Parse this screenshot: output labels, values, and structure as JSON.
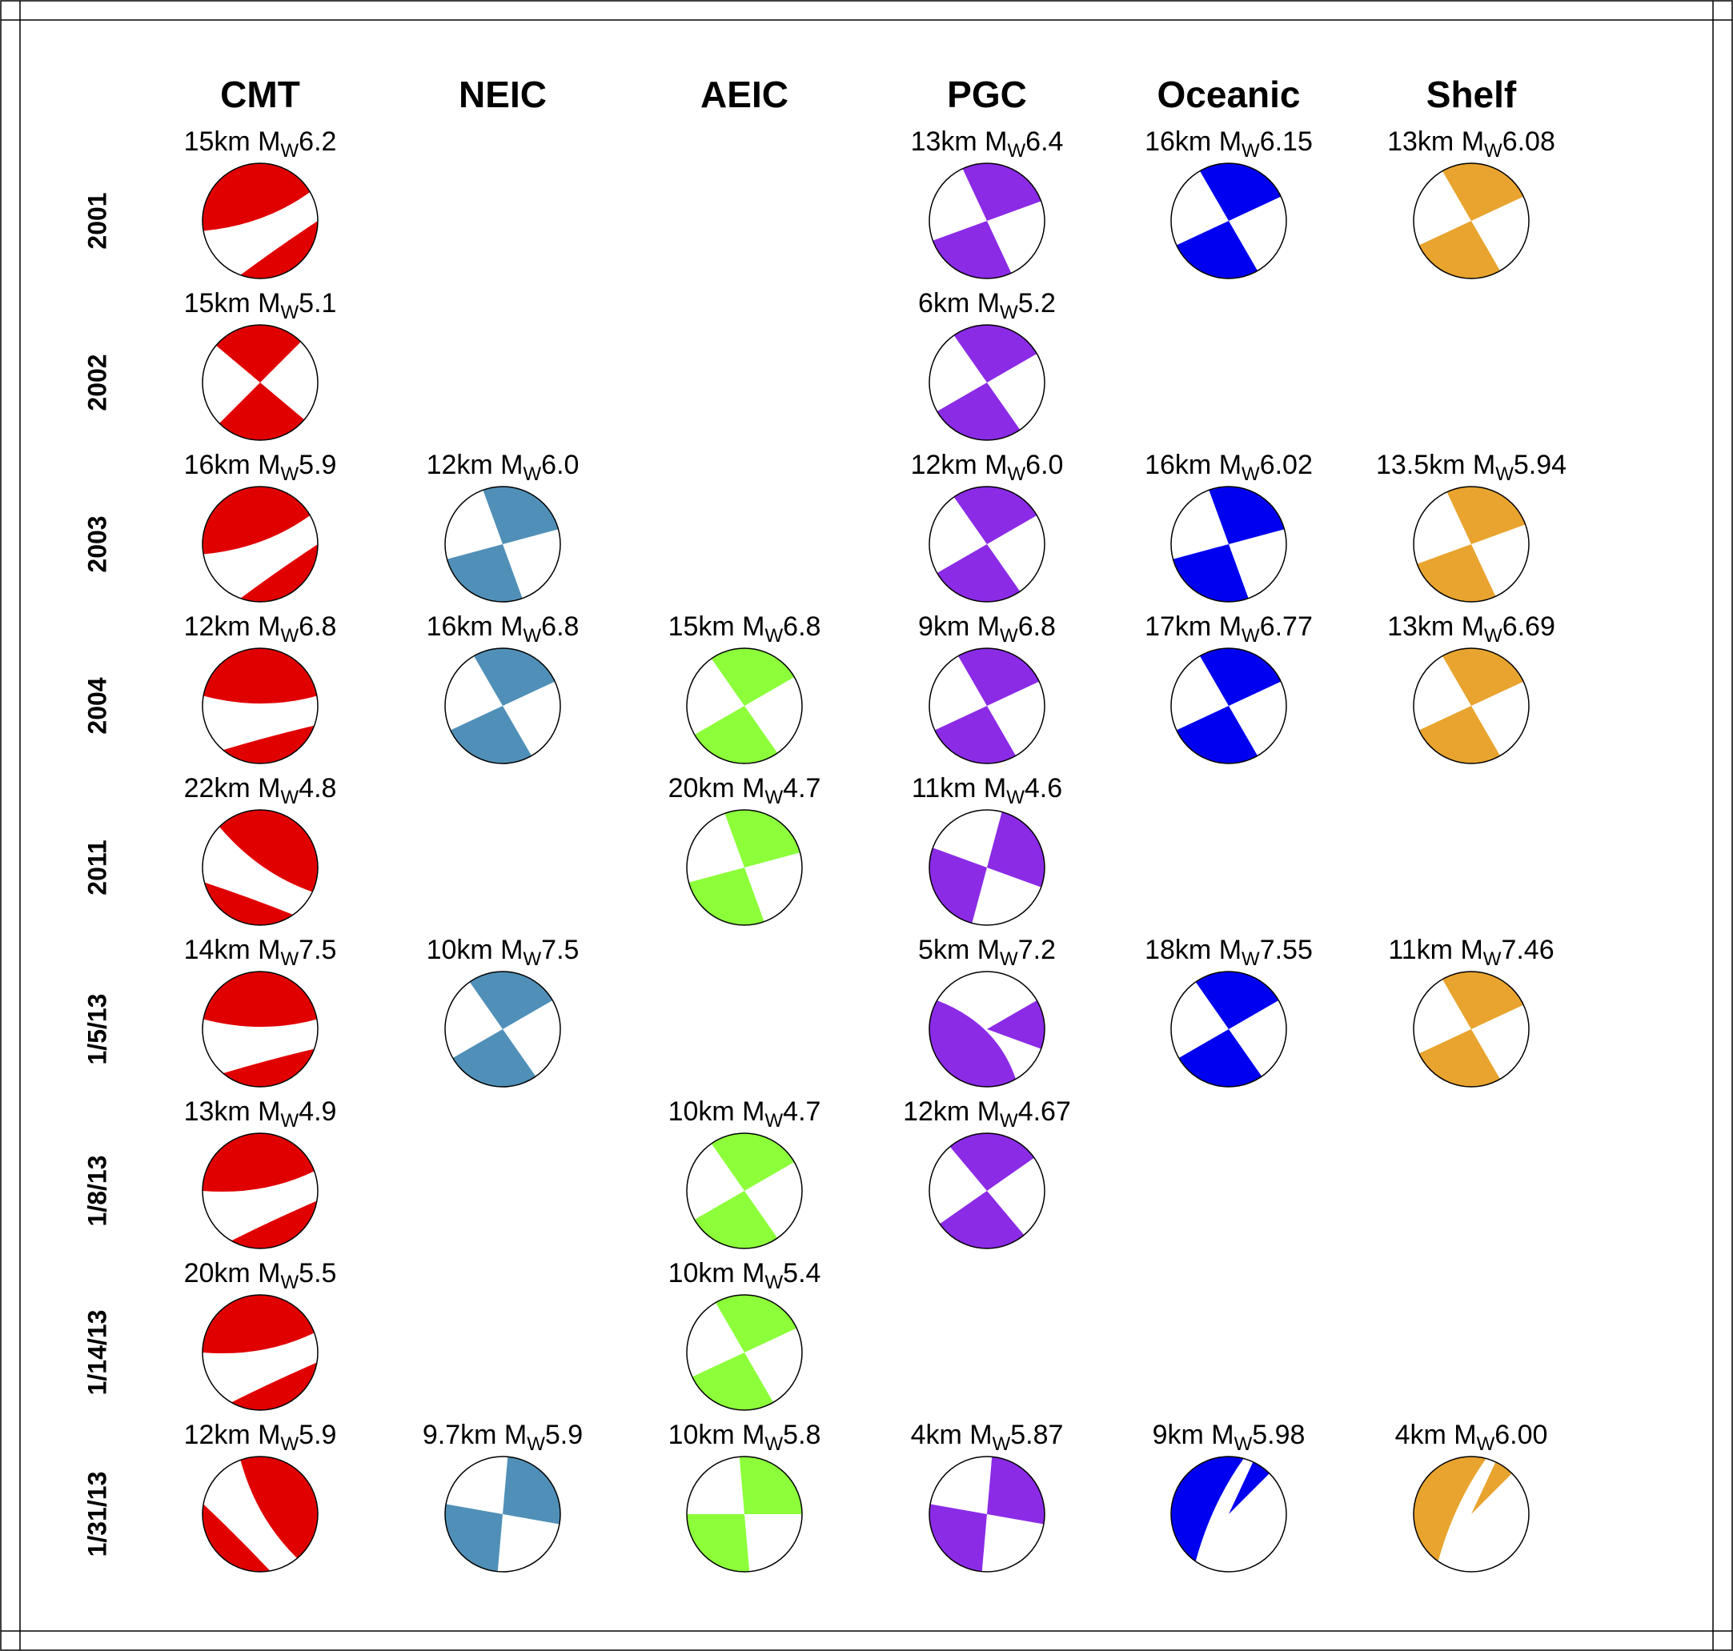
{
  "columns": [
    {
      "title": "CMT",
      "color": "#e10000"
    },
    {
      "title": "NEIC",
      "color": "#5090b8"
    },
    {
      "title": "AEIC",
      "color": "#8cff3a"
    },
    {
      "title": "PGC",
      "color": "#8b2be6"
    },
    {
      "title": "Oceanic",
      "color": "#0000f0"
    },
    {
      "title": "Shelf",
      "color": "#e8a42e"
    }
  ],
  "rows": [
    {
      "label": "2001",
      "cells": [
        {
          "depth": "15km",
          "m": "M",
          "sub": "W",
          "mag": "6.2",
          "strike": 300,
          "kind": "curved"
        },
        null,
        null,
        {
          "depth": "13km",
          "m": "M",
          "sub": "W",
          "mag": "6.4",
          "strike": 335,
          "kind": "quad"
        },
        {
          "depth": "16km",
          "m": "M",
          "sub": "W",
          "mag": "6.15",
          "strike": 330,
          "kind": "quad"
        },
        {
          "depth": "13km",
          "m": "M",
          "sub": "W",
          "mag": "6.08",
          "strike": 330,
          "kind": "quad"
        }
      ]
    },
    {
      "label": "2002",
      "cells": [
        {
          "depth": "15km",
          "m": "M",
          "sub": "W",
          "mag": "5.1",
          "strike": 310,
          "kind": "quad"
        },
        null,
        null,
        {
          "depth": "6km",
          "m": "M",
          "sub": "W",
          "mag": "5.2",
          "strike": 325,
          "kind": "quad"
        },
        null,
        null
      ]
    },
    {
      "label": "2003",
      "cells": [
        {
          "depth": "16km",
          "m": "M",
          "sub": "W",
          "mag": "5.9",
          "strike": 300,
          "kind": "curved"
        },
        {
          "depth": "12km",
          "m": "M",
          "sub": "W",
          "mag": "6.0",
          "strike": 340,
          "kind": "quad"
        },
        null,
        {
          "depth": "12km",
          "m": "M",
          "sub": "W",
          "mag": "6.0",
          "strike": 325,
          "kind": "quad"
        },
        {
          "depth": "16km",
          "m": "M",
          "sub": "W",
          "mag": "6.02",
          "strike": 340,
          "kind": "quad"
        },
        {
          "depth": "13.5km",
          "m": "M",
          "sub": "W",
          "mag": "5.94",
          "strike": 335,
          "kind": "quad"
        }
      ]
    },
    {
      "label": "2004",
      "cells": [
        {
          "depth": "12km",
          "m": "M",
          "sub": "W",
          "mag": "6.8",
          "strike": 320,
          "kind": "curved"
        },
        {
          "depth": "16km",
          "m": "M",
          "sub": "W",
          "mag": "6.8",
          "strike": 330,
          "kind": "quad"
        },
        {
          "depth": "15km",
          "m": "M",
          "sub": "W",
          "mag": "6.8",
          "strike": 325,
          "kind": "quad"
        },
        {
          "depth": "9km",
          "m": "M",
          "sub": "W",
          "mag": "6.8",
          "strike": 330,
          "kind": "quad"
        },
        {
          "depth": "17km",
          "m": "M",
          "sub": "W",
          "mag": "6.77",
          "strike": 330,
          "kind": "quad"
        },
        {
          "depth": "13km",
          "m": "M",
          "sub": "W",
          "mag": "6.69",
          "strike": 330,
          "kind": "quad"
        }
      ]
    },
    {
      "label": "2011",
      "cells": [
        {
          "depth": "22km",
          "m": "M",
          "sub": "W",
          "mag": "4.8",
          "strike": 355,
          "kind": "curved"
        },
        null,
        {
          "depth": "20km",
          "m": "M",
          "sub": "W",
          "mag": "4.7",
          "strike": 340,
          "kind": "quad"
        },
        {
          "depth": "11km",
          "m": "M",
          "sub": "W",
          "mag": "4.6",
          "strike": 15,
          "kind": "quad"
        },
        null,
        null
      ]
    },
    {
      "label": "1/5/13",
      "cells": [
        {
          "depth": "14km",
          "m": "M",
          "sub": "W",
          "mag": "7.5",
          "strike": 320,
          "kind": "curved"
        },
        {
          "depth": "10km",
          "m": "M",
          "sub": "W",
          "mag": "7.5",
          "strike": 325,
          "kind": "quad"
        },
        null,
        {
          "depth": "5km",
          "m": "M",
          "sub": "W",
          "mag": "7.2",
          "strike": 320,
          "kind": "shallow"
        },
        {
          "depth": "18km",
          "m": "M",
          "sub": "W",
          "mag": "7.55",
          "strike": 325,
          "kind": "quad"
        },
        {
          "depth": "11km",
          "m": "M",
          "sub": "W",
          "mag": "7.46",
          "strike": 330,
          "kind": "quad"
        }
      ]
    },
    {
      "label": "1/8/13",
      "cells": [
        {
          "depth": "13km",
          "m": "M",
          "sub": "W",
          "mag": "4.9",
          "strike": 310,
          "kind": "curved"
        },
        null,
        {
          "depth": "10km",
          "m": "M",
          "sub": "W",
          "mag": "4.7",
          "strike": 325,
          "kind": "quad"
        },
        {
          "depth": "12km",
          "m": "M",
          "sub": "W",
          "mag": "4.67",
          "strike": 320,
          "kind": "quad"
        },
        null,
        null
      ]
    },
    {
      "label": "1/14/13",
      "cells": [
        {
          "depth": "20km",
          "m": "M",
          "sub": "W",
          "mag": "5.5",
          "strike": 310,
          "kind": "curved"
        },
        null,
        {
          "depth": "10km",
          "m": "M",
          "sub": "W",
          "mag": "5.4",
          "strike": 330,
          "kind": "quad"
        },
        null,
        null,
        null
      ]
    },
    {
      "label": "1/31/13",
      "cells": [
        {
          "depth": "12km",
          "m": "M",
          "sub": "W",
          "mag": "5.9",
          "strike": 20,
          "kind": "curved"
        },
        {
          "depth": "9.7km",
          "m": "M",
          "sub": "W",
          "mag": "5.9",
          "strike": 5,
          "kind": "quad"
        },
        {
          "depth": "10km",
          "m": "M",
          "sub": "W",
          "mag": "5.8",
          "strike": 355,
          "kind": "quad"
        },
        {
          "depth": "4km",
          "m": "M",
          "sub": "W",
          "mag": "5.87",
          "strike": 5,
          "kind": "quad"
        },
        {
          "depth": "9km",
          "m": "M",
          "sub": "W",
          "mag": "5.98",
          "strike": 20,
          "kind": "wedge"
        },
        {
          "depth": "4km",
          "m": "M",
          "sub": "W",
          "mag": "6.00",
          "strike": 20,
          "kind": "wedge"
        }
      ]
    }
  ]
}
